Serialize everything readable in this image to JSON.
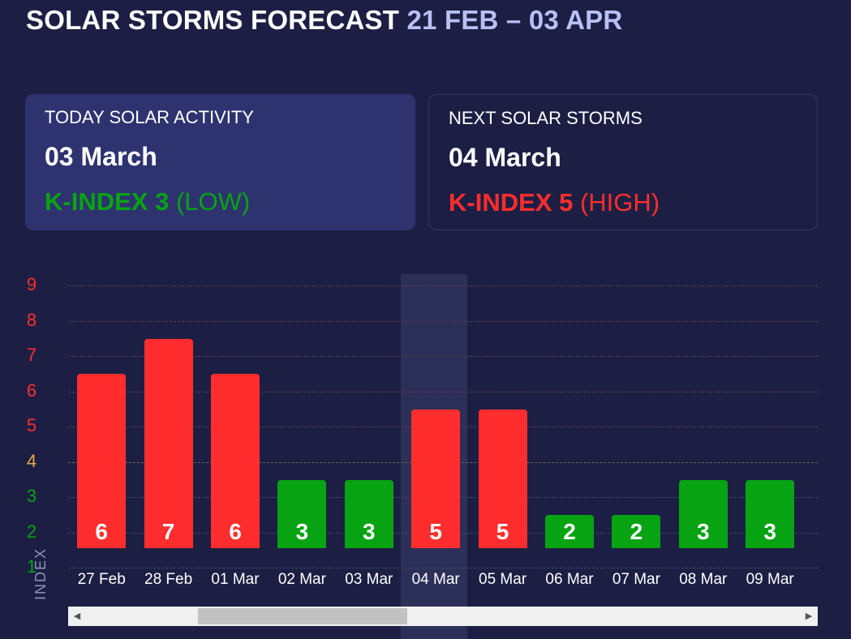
{
  "title": {
    "main": "SOLAR STORMS FORECAST",
    "range": "21 FEB – 03 APR"
  },
  "today_card": {
    "label": "TODAY SOLAR ACTIVITY",
    "date": "03 March",
    "kindex_label": "K-INDEX 3",
    "level": "(LOW)",
    "color": "#07a312"
  },
  "next_card": {
    "label": "NEXT SOLAR STORMS",
    "date": "04 March",
    "kindex_label": "K-INDEX 5",
    "level": "(HIGH)",
    "color": "#ff2d2d"
  },
  "colors": {
    "low": "#07a312",
    "moderate": "#e2a947",
    "high": "#ff2d2d",
    "background": "#1c1f43"
  },
  "chart_data": {
    "type": "bar",
    "ylabel": "INDEX",
    "yticks": [
      1,
      2,
      3,
      4,
      5,
      6,
      7,
      8,
      9
    ],
    "ylim": [
      1,
      9
    ],
    "categories": [
      "27 Feb",
      "28 Feb",
      "01 Mar",
      "02 Mar",
      "03 Mar",
      "04 Mar",
      "05 Mar",
      "06 Mar",
      "07 Mar",
      "08 Mar",
      "09 Mar"
    ],
    "values": [
      6,
      7,
      6,
      3,
      3,
      5,
      5,
      2,
      2,
      3,
      3
    ],
    "highlighted_category": "04 Mar",
    "grid": true
  },
  "scrollbar": {
    "left_icon": "arrow-left-icon",
    "right_icon": "arrow-right-icon"
  }
}
